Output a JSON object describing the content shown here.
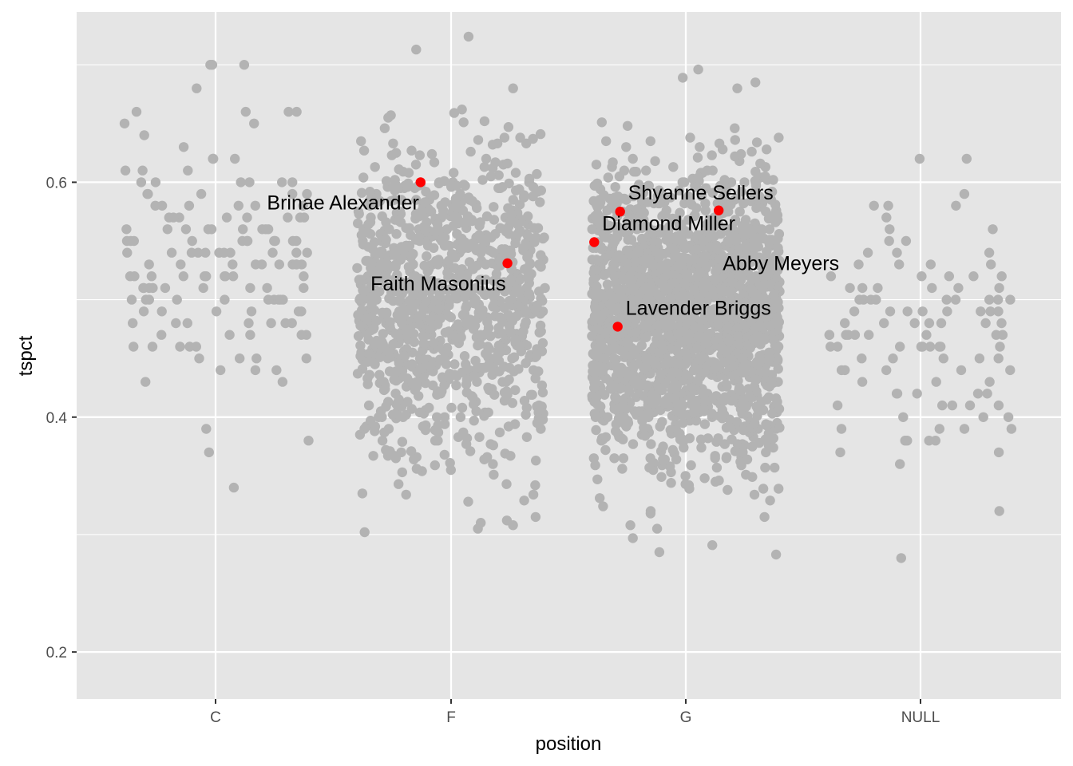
{
  "chart_data": {
    "type": "scatter",
    "xlabel": "position",
    "ylabel": "tspct",
    "categories": [
      "C",
      "F",
      "G",
      "NULL"
    ],
    "ylim": [
      0.16,
      0.745
    ],
    "yticks": [
      "0.2",
      "0.4",
      "0.6"
    ],
    "jitter": 0.4,
    "grid": true,
    "legend": "none",
    "colors": {
      "panel": "#e5e5e5",
      "grid": "#ffffff",
      "background_points": "#b3b3b3",
      "highlight_points": "#ff0000"
    },
    "background_points": {
      "description_counts": {
        "C": 150,
        "F": 1050,
        "G": 2000,
        "NULL": 110
      },
      "C": [
        0.66,
        0.65,
        0.64,
        0.63,
        0.62,
        0.61,
        0.6,
        0.6,
        0.59,
        0.59,
        0.58,
        0.58,
        0.57,
        0.57,
        0.57,
        0.56,
        0.56,
        0.56,
        0.55,
        0.55,
        0.55,
        0.55,
        0.54,
        0.54,
        0.54,
        0.54,
        0.53,
        0.53,
        0.53,
        0.53,
        0.52,
        0.52,
        0.52,
        0.52,
        0.51,
        0.51,
        0.51,
        0.5,
        0.5,
        0.5,
        0.49,
        0.49,
        0.48,
        0.48,
        0.47,
        0.46,
        0.46,
        0.45,
        0.44,
        0.43,
        0.38,
        0.68,
        0.7,
        0.7,
        0.66,
        0.66,
        0.6,
        0.59,
        0.57,
        0.56,
        0.56,
        0.55,
        0.54,
        0.54,
        0.53,
        0.52,
        0.51,
        0.5,
        0.49,
        0.48,
        0.48,
        0.47,
        0.46,
        0.45,
        0.44,
        0.43,
        0.39,
        0.34,
        0.37,
        0.55,
        0.52,
        0.5,
        0.58,
        0.56,
        0.57,
        0.53,
        0.52,
        0.54,
        0.51,
        0.5,
        0.49,
        0.48,
        0.47,
        0.45,
        0.46,
        0.66,
        0.65,
        0.7,
        0.6,
        0.58,
        0.55,
        0.53,
        0.51,
        0.5,
        0.47,
        0.46,
        0.55,
        0.52,
        0.54,
        0.56,
        0.57,
        0.48,
        0.49,
        0.6,
        0.61,
        0.62,
        0.52,
        0.53,
        0.54,
        0.55,
        0.56,
        0.57,
        0.5,
        0.51,
        0.49,
        0.5,
        0.45,
        0.44,
        0.48,
        0.47,
        0.58,
        0.59,
        0.52,
        0.53,
        0.54,
        0.55,
        0.51,
        0.5,
        0.6,
        0.62,
        0.61,
        0.56,
        0.57,
        0.59,
        0.58,
        0.54,
        0.55,
        0.52,
        0.53,
        0.51
      ],
      "F": [],
      "G": [],
      "NULL": [
        0.59,
        0.58,
        0.58,
        0.56,
        0.55,
        0.54,
        0.53,
        0.53,
        0.52,
        0.52,
        0.51,
        0.51,
        0.51,
        0.5,
        0.5,
        0.5,
        0.5,
        0.49,
        0.49,
        0.49,
        0.49,
        0.48,
        0.48,
        0.48,
        0.47,
        0.47,
        0.47,
        0.47,
        0.46,
        0.46,
        0.46,
        0.46,
        0.45,
        0.45,
        0.44,
        0.44,
        0.43,
        0.42,
        0.42,
        0.42,
        0.41,
        0.41,
        0.41,
        0.4,
        0.39,
        0.39,
        0.38,
        0.38,
        0.37,
        0.37,
        0.36,
        0.32,
        0.28,
        0.62,
        0.62,
        0.54,
        0.53,
        0.52,
        0.51,
        0.5,
        0.5,
        0.49,
        0.48,
        0.47,
        0.47,
        0.46,
        0.46,
        0.45,
        0.44,
        0.42,
        0.41,
        0.4,
        0.39,
        0.38,
        0.58,
        0.57,
        0.56,
        0.55,
        0.54,
        0.53,
        0.52,
        0.51,
        0.5,
        0.49,
        0.48,
        0.47,
        0.46,
        0.45,
        0.44,
        0.43,
        0.42,
        0.41,
        0.4,
        0.39,
        0.38,
        0.5,
        0.49,
        0.48,
        0.47,
        0.46,
        0.45,
        0.44,
        0.43,
        0.52,
        0.51,
        0.5,
        0.49,
        0.48,
        0.47,
        0.46
      ]
    },
    "highlighted": [
      {
        "name": "Brinae Alexander",
        "position": "F",
        "x_offset": -0.13,
        "tspct": 0.6,
        "label_side": "below-left"
      },
      {
        "name": "Faith Masonius",
        "position": "F",
        "x_offset": 0.24,
        "tspct": 0.531,
        "label_side": "below-left"
      },
      {
        "name": "Diamond Miller",
        "position": "G",
        "x_offset": -0.39,
        "tspct": 0.549,
        "label_side": "above-right"
      },
      {
        "name": "Shyanne Sellers",
        "position": "G",
        "x_offset": -0.28,
        "tspct": 0.575,
        "label_side": "above-right"
      },
      {
        "name": "Abby Meyers",
        "position": "G",
        "x_offset": 0.14,
        "tspct": 0.576,
        "label_side": "below-right"
      },
      {
        "name": "Lavender Briggs",
        "position": "G",
        "x_offset": -0.29,
        "tspct": 0.477,
        "label_side": "above-right"
      }
    ]
  }
}
